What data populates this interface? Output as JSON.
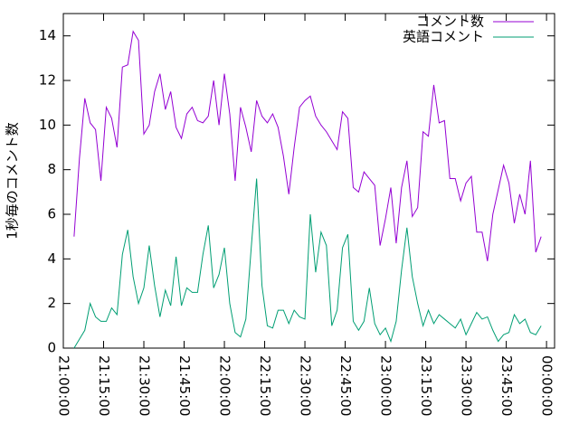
{
  "chart_data": {
    "type": "line",
    "ylabel": "1秒毎のコメント数",
    "x": [
      "21:04:00",
      "21:06:00",
      "21:08:00",
      "21:10:00",
      "21:12:00",
      "21:14:00",
      "21:16:00",
      "21:18:00",
      "21:20:00",
      "21:22:00",
      "21:24:00",
      "21:26:00",
      "21:28:00",
      "21:30:00",
      "21:32:00",
      "21:34:00",
      "21:36:00",
      "21:38:00",
      "21:40:00",
      "21:42:00",
      "21:44:00",
      "21:46:00",
      "21:48:00",
      "21:50:00",
      "21:52:00",
      "21:54:00",
      "21:56:00",
      "21:58:00",
      "22:00:00",
      "22:02:00",
      "22:04:00",
      "22:06:00",
      "22:08:00",
      "22:10:00",
      "22:12:00",
      "22:14:00",
      "22:16:00",
      "22:18:00",
      "22:20:00",
      "22:22:00",
      "22:24:00",
      "22:26:00",
      "22:28:00",
      "22:30:00",
      "22:32:00",
      "22:34:00",
      "22:36:00",
      "22:38:00",
      "22:40:00",
      "22:42:00",
      "22:44:00",
      "22:46:00",
      "22:48:00",
      "22:50:00",
      "22:52:00",
      "22:54:00",
      "22:56:00",
      "22:58:00",
      "23:00:00",
      "23:02:00",
      "23:04:00",
      "23:06:00",
      "23:08:00",
      "23:10:00",
      "23:12:00",
      "23:14:00",
      "23:16:00",
      "23:18:00",
      "23:20:00",
      "23:22:00",
      "23:24:00",
      "23:26:00",
      "23:28:00",
      "23:30:00",
      "23:32:00",
      "23:34:00",
      "23:36:00",
      "23:38:00",
      "23:40:00",
      "23:42:00",
      "23:44:00",
      "23:46:00",
      "23:48:00",
      "23:50:00",
      "23:52:00",
      "23:54:00",
      "23:56:00",
      "23:58:00"
    ],
    "series": [
      {
        "name": "コメント数",
        "color": "#9400d3",
        "values": [
          5.0,
          8.5,
          11.2,
          10.1,
          9.8,
          7.5,
          10.8,
          10.3,
          9.0,
          12.6,
          12.7,
          14.2,
          13.8,
          9.6,
          10.0,
          11.5,
          12.3,
          10.7,
          11.5,
          9.9,
          9.4,
          10.5,
          10.8,
          10.2,
          10.1,
          10.4,
          12.0,
          10.0,
          12.3,
          10.5,
          7.5,
          10.8,
          9.9,
          8.8,
          11.1,
          10.4,
          10.1,
          10.5,
          9.9,
          8.6,
          6.9,
          9.0,
          10.8,
          11.1,
          11.3,
          10.4,
          10.0,
          9.7,
          9.3,
          8.9,
          10.6,
          10.3,
          7.2,
          7.0,
          7.9,
          7.6,
          7.3,
          4.6,
          5.8,
          7.2,
          4.7,
          7.2,
          8.4,
          5.9,
          6.3,
          9.7,
          9.5,
          11.8,
          10.1,
          10.2,
          7.6,
          7.6,
          6.6,
          7.4,
          7.7,
          5.2,
          5.2,
          3.9,
          6.0,
          7.1,
          8.2,
          7.4,
          5.6,
          6.9,
          6.0,
          8.4,
          4.3,
          5.0
        ]
      },
      {
        "name": "英語コメント",
        "color": "#009e73",
        "values": [
          0,
          0.4,
          0.8,
          2.0,
          1.4,
          1.2,
          1.2,
          1.8,
          1.5,
          4.2,
          5.3,
          3.2,
          2.0,
          2.7,
          4.6,
          2.8,
          1.4,
          2.6,
          1.9,
          4.1,
          1.9,
          2.7,
          2.5,
          2.5,
          4.2,
          5.5,
          2.7,
          3.3,
          4.5,
          2.0,
          0.7,
          0.5,
          1.3,
          4.5,
          7.6,
          2.8,
          1.0,
          0.9,
          1.7,
          1.7,
          1.1,
          1.7,
          1.4,
          1.3,
          6.0,
          3.4,
          5.2,
          4.6,
          1.0,
          1.7,
          4.5,
          5.1,
          1.2,
          0.8,
          1.2,
          2.7,
          1.1,
          0.6,
          0.9,
          0.3,
          1.2,
          3.5,
          5.4,
          3.2,
          2.0,
          1.0,
          1.7,
          1.1,
          1.5,
          1.3,
          1.1,
          0.9,
          1.3,
          0.6,
          1.1,
          1.6,
          1.3,
          1.4,
          0.8,
          0.3,
          0.6,
          0.7,
          1.5,
          1.1,
          1.3,
          0.7,
          0.6,
          1.0
        ]
      }
    ],
    "xlim": [
      "21:00:00",
      "00:03:00"
    ],
    "xticks": [
      "21:00:00",
      "21:15:00",
      "21:30:00",
      "21:45:00",
      "22:00:00",
      "22:15:00",
      "22:30:00",
      "22:45:00",
      "23:00:00",
      "23:15:00",
      "23:30:00",
      "23:45:00",
      "00:00:00"
    ],
    "ylim": [
      0,
      15
    ],
    "yticks": [
      0,
      2,
      4,
      6,
      8,
      10,
      12,
      14
    ],
    "legend": "top-right"
  }
}
